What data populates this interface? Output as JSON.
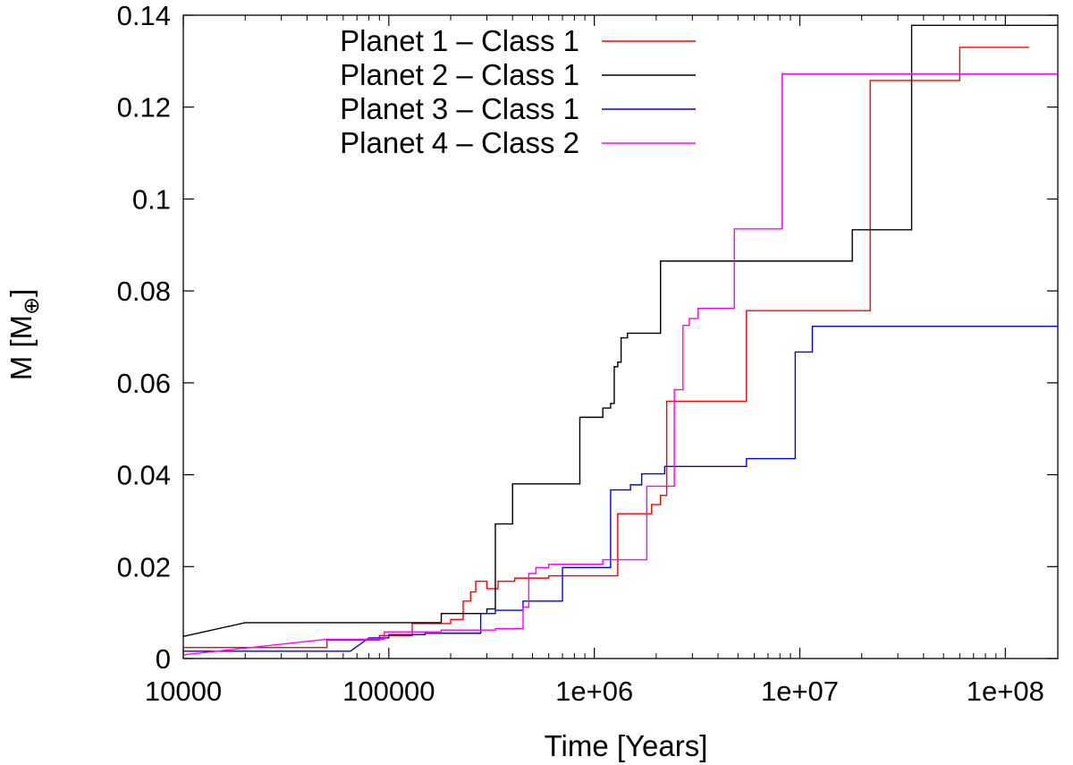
{
  "chart_data": {
    "type": "line",
    "title": "",
    "xlabel": "Time [Years]",
    "ylabel_main": "M [M",
    "ylabel_sub": "⊕",
    "ylabel_close": "]",
    "xscale": "log",
    "xlim": [
      10000,
      180000000
    ],
    "ylim": [
      0,
      0.14
    ],
    "grid": false,
    "legend_position": "top-center",
    "x_ticks": [
      {
        "value": 10000,
        "label": "10000"
      },
      {
        "value": 100000,
        "label": "100000"
      },
      {
        "value": 1000000,
        "label": "1e+06"
      },
      {
        "value": 10000000,
        "label": "1e+07"
      },
      {
        "value": 100000000,
        "label": "1e+08"
      }
    ],
    "y_ticks": [
      {
        "value": 0,
        "label": "0"
      },
      {
        "value": 0.02,
        "label": "0.02"
      },
      {
        "value": 0.04,
        "label": "0.04"
      },
      {
        "value": 0.06,
        "label": "0.06"
      },
      {
        "value": 0.08,
        "label": "0.08"
      },
      {
        "value": 0.1,
        "label": "0.1"
      },
      {
        "value": 0.12,
        "label": "0.12"
      },
      {
        "value": 0.14,
        "label": "0.14"
      }
    ],
    "series": [
      {
        "name": "Planet 1 – Class 1",
        "color": "#ff0000",
        "points": [
          [
            10000,
            0.0024
          ],
          [
            50000,
            0.0024
          ],
          [
            50000,
            0.004
          ],
          [
            90000,
            0.004
          ],
          [
            90000,
            0.005
          ],
          [
            130000,
            0.005
          ],
          [
            130000,
            0.0076
          ],
          [
            200000,
            0.0076
          ],
          [
            200000,
            0.0085
          ],
          [
            230000,
            0.0085
          ],
          [
            230000,
            0.0125
          ],
          [
            250000,
            0.0125
          ],
          [
            250000,
            0.0145
          ],
          [
            265000,
            0.0145
          ],
          [
            265000,
            0.0168
          ],
          [
            300000,
            0.0168
          ],
          [
            300000,
            0.0152
          ],
          [
            340000,
            0.0152
          ],
          [
            340000,
            0.0168
          ],
          [
            410000,
            0.0168
          ],
          [
            410000,
            0.0175
          ],
          [
            600000,
            0.0175
          ],
          [
            600000,
            0.018
          ],
          [
            1300000,
            0.018
          ],
          [
            1300000,
            0.0315
          ],
          [
            1900000,
            0.0315
          ],
          [
            1900000,
            0.0335
          ],
          [
            2100000,
            0.0335
          ],
          [
            2100000,
            0.0355
          ],
          [
            2250000,
            0.0355
          ],
          [
            2250000,
            0.056
          ],
          [
            5500000,
            0.056
          ],
          [
            5500000,
            0.0757
          ],
          [
            22000000,
            0.0757
          ],
          [
            22000000,
            0.1258
          ],
          [
            60000000,
            0.1258
          ],
          [
            60000000,
            0.133
          ],
          [
            130000000,
            0.133
          ]
        ]
      },
      {
        "name": "Planet 2 – Class 1",
        "color": "#000000",
        "points": [
          [
            10000,
            0.0048
          ],
          [
            20000,
            0.0078
          ],
          [
            180000,
            0.0078
          ],
          [
            180000,
            0.0098
          ],
          [
            300000,
            0.0098
          ],
          [
            300000,
            0.0108
          ],
          [
            330000,
            0.0108
          ],
          [
            330000,
            0.0293
          ],
          [
            400000,
            0.0293
          ],
          [
            400000,
            0.038
          ],
          [
            850000,
            0.038
          ],
          [
            850000,
            0.0525
          ],
          [
            1100000,
            0.0525
          ],
          [
            1100000,
            0.0545
          ],
          [
            1200000,
            0.0545
          ],
          [
            1200000,
            0.0555
          ],
          [
            1250000,
            0.0555
          ],
          [
            1250000,
            0.0635
          ],
          [
            1300000,
            0.0635
          ],
          [
            1300000,
            0.0645
          ],
          [
            1350000,
            0.0645
          ],
          [
            1350000,
            0.0698
          ],
          [
            1450000,
            0.0698
          ],
          [
            1450000,
            0.0708
          ],
          [
            2100000,
            0.0708
          ],
          [
            2100000,
            0.0865
          ],
          [
            18000000,
            0.0865
          ],
          [
            18000000,
            0.0933
          ],
          [
            35000000,
            0.0933
          ],
          [
            35000000,
            0.1378
          ],
          [
            180000000,
            0.1378
          ]
        ]
      },
      {
        "name": "Planet 3 – Class 1",
        "color": "#0000ff",
        "points": [
          [
            10000,
            0.0016
          ],
          [
            65000,
            0.0016
          ],
          [
            80000,
            0.0045
          ],
          [
            100000,
            0.0045
          ],
          [
            100000,
            0.0052
          ],
          [
            150000,
            0.0052
          ],
          [
            150000,
            0.0055
          ],
          [
            280000,
            0.0055
          ],
          [
            280000,
            0.0098
          ],
          [
            330000,
            0.0098
          ],
          [
            330000,
            0.0105
          ],
          [
            450000,
            0.0105
          ],
          [
            450000,
            0.0125
          ],
          [
            500000,
            0.0125
          ],
          [
            500000,
            0.0125
          ],
          [
            700000,
            0.0125
          ],
          [
            700000,
            0.0198
          ],
          [
            1200000,
            0.0198
          ],
          [
            1200000,
            0.0367
          ],
          [
            1500000,
            0.0367
          ],
          [
            1500000,
            0.0378
          ],
          [
            1700000,
            0.0378
          ],
          [
            1700000,
            0.0402
          ],
          [
            2200000,
            0.0402
          ],
          [
            2200000,
            0.0418
          ],
          [
            5500000,
            0.0418
          ],
          [
            5500000,
            0.0435
          ],
          [
            9500000,
            0.0435
          ],
          [
            9500000,
            0.0667
          ],
          [
            11500000,
            0.0667
          ],
          [
            11500000,
            0.0723
          ],
          [
            180000000,
            0.0723
          ]
        ]
      },
      {
        "name": "Planet 4 – Class 2",
        "color": "#ff00ff",
        "points": [
          [
            10000,
            0.0008
          ],
          [
            50000,
            0.0042
          ],
          [
            95000,
            0.0042
          ],
          [
            95000,
            0.0058
          ],
          [
            180000,
            0.0058
          ],
          [
            180000,
            0.0062
          ],
          [
            330000,
            0.0062
          ],
          [
            330000,
            0.0065
          ],
          [
            450000,
            0.0065
          ],
          [
            450000,
            0.0112
          ],
          [
            480000,
            0.0112
          ],
          [
            480000,
            0.0185
          ],
          [
            520000,
            0.0185
          ],
          [
            520000,
            0.0198
          ],
          [
            600000,
            0.0198
          ],
          [
            600000,
            0.0205
          ],
          [
            1100000,
            0.0205
          ],
          [
            1100000,
            0.0215
          ],
          [
            1800000,
            0.0215
          ],
          [
            1800000,
            0.0375
          ],
          [
            2100000,
            0.0375
          ],
          [
            2100000,
            0.0375
          ],
          [
            2450000,
            0.0375
          ],
          [
            2450000,
            0.0585
          ],
          [
            2700000,
            0.0585
          ],
          [
            2700000,
            0.0725
          ],
          [
            2900000,
            0.0725
          ],
          [
            2900000,
            0.074
          ],
          [
            3200000,
            0.074
          ],
          [
            3200000,
            0.0762
          ],
          [
            4800000,
            0.0762
          ],
          [
            4800000,
            0.0935
          ],
          [
            8200000,
            0.0935
          ],
          [
            8200000,
            0.1272
          ],
          [
            180000000,
            0.1272
          ]
        ]
      }
    ]
  }
}
